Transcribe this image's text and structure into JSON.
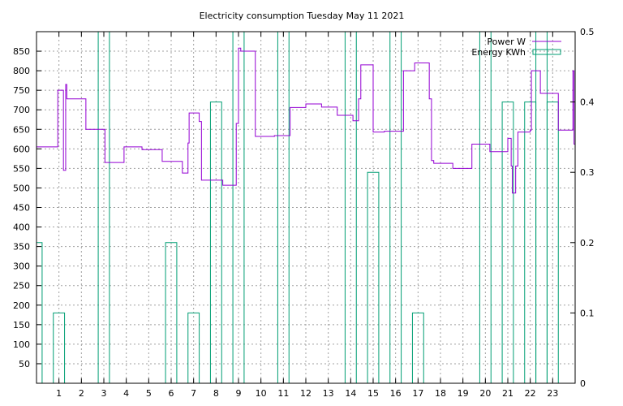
{
  "chart_data": {
    "type": "line",
    "title": "Electricity consumption Tuesday May 11 2021",
    "legend_position": "top-right",
    "grid": true,
    "x": {
      "range": [
        0,
        24
      ],
      "ticks": [
        "1",
        "2",
        "3",
        "4",
        "5",
        "6",
        "7",
        "8",
        "9",
        "10",
        "11",
        "12",
        "13",
        "14",
        "15",
        "16",
        "17",
        "18",
        "19",
        "20",
        "21",
        "22",
        "23"
      ]
    },
    "y_left": {
      "range": [
        0,
        900
      ],
      "ticks": [
        50,
        100,
        150,
        200,
        250,
        300,
        350,
        400,
        450,
        500,
        550,
        600,
        650,
        700,
        750,
        800,
        850
      ]
    },
    "y_right": {
      "range": [
        0,
        0.5
      ],
      "ticks": [
        "0",
        "0.1",
        "0.2",
        "0.3",
        "0.4",
        "0.5"
      ]
    },
    "series": [
      {
        "name": "Power W",
        "axis": "left",
        "color": "#9400d3",
        "style": "step",
        "points": [
          [
            0,
            605
          ],
          [
            0.95,
            605
          ],
          [
            0.95,
            750
          ],
          [
            1.2,
            750
          ],
          [
            1.2,
            545
          ],
          [
            1.3,
            545
          ],
          [
            1.3,
            765
          ],
          [
            1.35,
            765
          ],
          [
            1.35,
            728
          ],
          [
            2.2,
            728
          ],
          [
            2.2,
            650
          ],
          [
            3.05,
            650
          ],
          [
            3.05,
            565
          ],
          [
            3.9,
            565
          ],
          [
            3.9,
            605
          ],
          [
            4.7,
            605
          ],
          [
            4.7,
            598
          ],
          [
            5.6,
            598
          ],
          [
            5.6,
            568
          ],
          [
            6.5,
            568
          ],
          [
            6.5,
            538
          ],
          [
            6.75,
            538
          ],
          [
            6.75,
            615
          ],
          [
            6.8,
            615
          ],
          [
            6.8,
            692
          ],
          [
            7.25,
            692
          ],
          [
            7.25,
            670
          ],
          [
            7.35,
            670
          ],
          [
            7.35,
            520
          ],
          [
            8.3,
            520
          ],
          [
            8.3,
            507
          ],
          [
            8.9,
            507
          ],
          [
            8.9,
            665
          ],
          [
            9.0,
            665
          ],
          [
            9.0,
            858
          ],
          [
            9.1,
            858
          ],
          [
            9.1,
            850
          ],
          [
            9.75,
            850
          ],
          [
            9.75,
            632
          ],
          [
            10.6,
            632
          ],
          [
            10.6,
            634
          ],
          [
            11.3,
            634
          ],
          [
            11.3,
            706
          ],
          [
            12.0,
            706
          ],
          [
            12.0,
            715
          ],
          [
            12.7,
            715
          ],
          [
            12.7,
            707
          ],
          [
            13.4,
            707
          ],
          [
            13.4,
            686
          ],
          [
            14.1,
            686
          ],
          [
            14.1,
            672
          ],
          [
            14.35,
            672
          ],
          [
            14.35,
            728
          ],
          [
            14.45,
            728
          ],
          [
            14.45,
            815
          ],
          [
            15.0,
            815
          ],
          [
            15.0,
            643
          ],
          [
            15.5,
            643
          ],
          [
            15.5,
            645
          ],
          [
            16.35,
            645
          ],
          [
            16.35,
            800
          ],
          [
            16.85,
            800
          ],
          [
            16.85,
            820
          ],
          [
            17.5,
            820
          ],
          [
            17.5,
            728
          ],
          [
            17.6,
            728
          ],
          [
            17.6,
            570
          ],
          [
            17.7,
            570
          ],
          [
            17.7,
            563
          ],
          [
            18.55,
            563
          ],
          [
            18.55,
            550
          ],
          [
            19.4,
            550
          ],
          [
            19.4,
            612
          ],
          [
            20.2,
            612
          ],
          [
            20.2,
            593
          ],
          [
            21.0,
            593
          ],
          [
            21.0,
            627
          ],
          [
            21.15,
            627
          ],
          [
            21.15,
            556
          ],
          [
            21.2,
            556
          ],
          [
            21.2,
            487
          ],
          [
            21.35,
            487
          ],
          [
            21.35,
            556
          ],
          [
            21.45,
            556
          ],
          [
            21.45,
            643
          ],
          [
            22.0,
            643
          ],
          [
            22.0,
            648
          ],
          [
            22.05,
            648
          ],
          [
            22.05,
            800
          ],
          [
            22.45,
            800
          ],
          [
            22.45,
            742
          ],
          [
            23.25,
            742
          ],
          [
            23.25,
            648
          ],
          [
            23.9,
            648
          ],
          [
            23.9,
            800
          ],
          [
            23.95,
            800
          ],
          [
            23.95,
            612
          ],
          [
            24,
            612
          ]
        ]
      },
      {
        "name": "Energy KWh",
        "axis": "right",
        "color": "#009e73",
        "style": "impulse-bars",
        "bars": [
          {
            "x0": -0.25,
            "x1": 0.25,
            "value": 0.2
          },
          {
            "x0": 0.75,
            "x1": 1.25,
            "value": 0.1
          },
          {
            "x0": 2.75,
            "x1": 3.25,
            "value": 0.5
          },
          {
            "x0": 5.75,
            "x1": 6.25,
            "value": 0.2
          },
          {
            "x0": 6.75,
            "x1": 7.25,
            "value": 0.1
          },
          {
            "x0": 7.75,
            "x1": 8.25,
            "value": 0.4
          },
          {
            "x0": 8.75,
            "x1": 9.25,
            "value": 0.5
          },
          {
            "x0": 10.75,
            "x1": 11.25,
            "value": 0.5
          },
          {
            "x0": 13.75,
            "x1": 14.25,
            "value": 0.5
          },
          {
            "x0": 14.75,
            "x1": 15.25,
            "value": 0.3
          },
          {
            "x0": 15.75,
            "x1": 16.25,
            "value": 0.5
          },
          {
            "x0": 16.75,
            "x1": 17.25,
            "value": 0.1
          },
          {
            "x0": 19.75,
            "x1": 20.25,
            "value": 0.5
          },
          {
            "x0": 20.75,
            "x1": 21.25,
            "value": 0.4
          },
          {
            "x0": 21.75,
            "x1": 22.25,
            "value": 0.4
          },
          {
            "x0": 22.25,
            "x1": 22.75,
            "value": 0.5
          },
          {
            "x0": 22.75,
            "x1": 23.25,
            "value": 0.4
          }
        ]
      }
    ]
  }
}
